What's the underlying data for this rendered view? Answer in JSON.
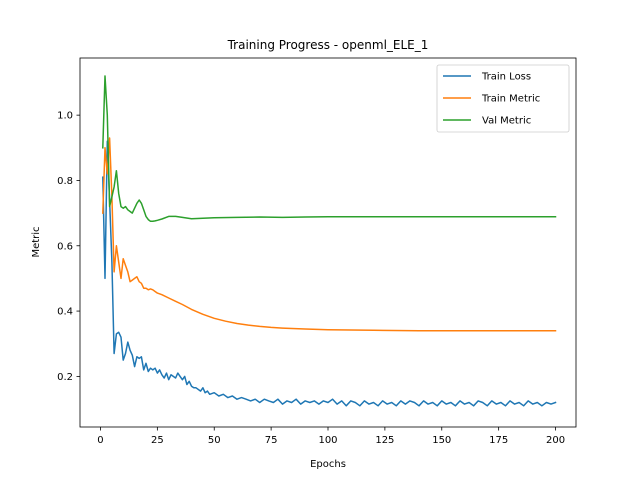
{
  "chart_data": {
    "type": "line",
    "title": "Training Progress - openml_ELE_1",
    "xlabel": "Epochs",
    "ylabel": "Metric",
    "xlim": [
      -9,
      209
    ],
    "ylim": [
      0.045,
      1.175
    ],
    "xticks": [
      0,
      25,
      50,
      75,
      100,
      125,
      150,
      175,
      200
    ],
    "yticks": [
      0.2,
      0.4,
      0.6,
      0.8,
      1.0
    ],
    "ytick_labels": [
      "0.2",
      "0.4",
      "0.6",
      "0.8",
      "1.0"
    ],
    "grid": false,
    "legend_position": "top-right",
    "series": [
      {
        "name": "Train Loss",
        "color": "#1f77b4",
        "points": [
          [
            1,
            0.81
          ],
          [
            2,
            0.5
          ],
          [
            3,
            0.92
          ],
          [
            4,
            0.74
          ],
          [
            5,
            0.55
          ],
          [
            6,
            0.27
          ],
          [
            7,
            0.33
          ],
          [
            8,
            0.335
          ],
          [
            9,
            0.32
          ],
          [
            10,
            0.25
          ],
          [
            11,
            0.27
          ],
          [
            12,
            0.305
          ],
          [
            13,
            0.28
          ],
          [
            14,
            0.265
          ],
          [
            15,
            0.23
          ],
          [
            16,
            0.26
          ],
          [
            17,
            0.255
          ],
          [
            18,
            0.26
          ],
          [
            19,
            0.22
          ],
          [
            20,
            0.24
          ],
          [
            21,
            0.215
          ],
          [
            22,
            0.225
          ],
          [
            23,
            0.22
          ],
          [
            24,
            0.225
          ],
          [
            25,
            0.21
          ],
          [
            26,
            0.22
          ],
          [
            27,
            0.205
          ],
          [
            28,
            0.195
          ],
          [
            29,
            0.21
          ],
          [
            30,
            0.19
          ],
          [
            31,
            0.205
          ],
          [
            32,
            0.2
          ],
          [
            33,
            0.195
          ],
          [
            34,
            0.21
          ],
          [
            35,
            0.2
          ],
          [
            36,
            0.19
          ],
          [
            37,
            0.2
          ],
          [
            38,
            0.175
          ],
          [
            39,
            0.185
          ],
          [
            40,
            0.17
          ],
          [
            41,
            0.165
          ],
          [
            42,
            0.165
          ],
          [
            44,
            0.155
          ],
          [
            45,
            0.165
          ],
          [
            46,
            0.15
          ],
          [
            47,
            0.155
          ],
          [
            48,
            0.145
          ],
          [
            50,
            0.15
          ],
          [
            52,
            0.14
          ],
          [
            54,
            0.145
          ],
          [
            56,
            0.135
          ],
          [
            58,
            0.14
          ],
          [
            60,
            0.13
          ],
          [
            62,
            0.135
          ],
          [
            64,
            0.13
          ],
          [
            66,
            0.125
          ],
          [
            68,
            0.13
          ],
          [
            70,
            0.12
          ],
          [
            72,
            0.13
          ],
          [
            74,
            0.125
          ],
          [
            76,
            0.12
          ],
          [
            78,
            0.13
          ],
          [
            80,
            0.115
          ],
          [
            82,
            0.125
          ],
          [
            84,
            0.12
          ],
          [
            86,
            0.13
          ],
          [
            88,
            0.115
          ],
          [
            90,
            0.125
          ],
          [
            92,
            0.12
          ],
          [
            94,
            0.125
          ],
          [
            96,
            0.115
          ],
          [
            98,
            0.125
          ],
          [
            100,
            0.12
          ],
          [
            102,
            0.13
          ],
          [
            104,
            0.115
          ],
          [
            106,
            0.125
          ],
          [
            108,
            0.11
          ],
          [
            110,
            0.125
          ],
          [
            112,
            0.12
          ],
          [
            114,
            0.11
          ],
          [
            116,
            0.125
          ],
          [
            118,
            0.115
          ],
          [
            120,
            0.12
          ],
          [
            122,
            0.11
          ],
          [
            124,
            0.125
          ],
          [
            126,
            0.115
          ],
          [
            128,
            0.12
          ],
          [
            130,
            0.11
          ],
          [
            132,
            0.125
          ],
          [
            134,
            0.115
          ],
          [
            136,
            0.125
          ],
          [
            138,
            0.12
          ],
          [
            140,
            0.11
          ],
          [
            142,
            0.125
          ],
          [
            144,
            0.115
          ],
          [
            146,
            0.12
          ],
          [
            148,
            0.11
          ],
          [
            150,
            0.125
          ],
          [
            152,
            0.115
          ],
          [
            154,
            0.12
          ],
          [
            156,
            0.11
          ],
          [
            158,
            0.125
          ],
          [
            160,
            0.115
          ],
          [
            162,
            0.12
          ],
          [
            164,
            0.11
          ],
          [
            166,
            0.125
          ],
          [
            168,
            0.12
          ],
          [
            170,
            0.11
          ],
          [
            172,
            0.125
          ],
          [
            174,
            0.115
          ],
          [
            176,
            0.12
          ],
          [
            178,
            0.11
          ],
          [
            180,
            0.125
          ],
          [
            182,
            0.115
          ],
          [
            184,
            0.12
          ],
          [
            186,
            0.11
          ],
          [
            188,
            0.125
          ],
          [
            190,
            0.115
          ],
          [
            192,
            0.12
          ],
          [
            194,
            0.11
          ],
          [
            196,
            0.12
          ],
          [
            198,
            0.115
          ],
          [
            200,
            0.12
          ]
        ]
      },
      {
        "name": "Train Metric",
        "color": "#ff7f0e",
        "points": [
          [
            1,
            0.7
          ],
          [
            2,
            0.9
          ],
          [
            3,
            0.82
          ],
          [
            4,
            0.93
          ],
          [
            5,
            0.75
          ],
          [
            6,
            0.52
          ],
          [
            7,
            0.6
          ],
          [
            8,
            0.55
          ],
          [
            9,
            0.5
          ],
          [
            10,
            0.56
          ],
          [
            11,
            0.54
          ],
          [
            12,
            0.52
          ],
          [
            13,
            0.49
          ],
          [
            14,
            0.495
          ],
          [
            15,
            0.5
          ],
          [
            16,
            0.505
          ],
          [
            17,
            0.49
          ],
          [
            18,
            0.485
          ],
          [
            19,
            0.47
          ],
          [
            20,
            0.47
          ],
          [
            21,
            0.465
          ],
          [
            22,
            0.468
          ],
          [
            23,
            0.465
          ],
          [
            24,
            0.46
          ],
          [
            25,
            0.455
          ],
          [
            27,
            0.45
          ],
          [
            30,
            0.44
          ],
          [
            33,
            0.43
          ],
          [
            36,
            0.42
          ],
          [
            40,
            0.405
          ],
          [
            45,
            0.39
          ],
          [
            50,
            0.378
          ],
          [
            55,
            0.369
          ],
          [
            60,
            0.362
          ],
          [
            65,
            0.357
          ],
          [
            70,
            0.353
          ],
          [
            75,
            0.35
          ],
          [
            80,
            0.348
          ],
          [
            90,
            0.345
          ],
          [
            100,
            0.343
          ],
          [
            110,
            0.342
          ],
          [
            120,
            0.341
          ],
          [
            140,
            0.34
          ],
          [
            160,
            0.34
          ],
          [
            180,
            0.34
          ],
          [
            200,
            0.34
          ]
        ]
      },
      {
        "name": "Val Metric",
        "color": "#2ca02c",
        "points": [
          [
            1,
            0.9
          ],
          [
            2,
            1.12
          ],
          [
            3,
            1.0
          ],
          [
            4,
            0.72
          ],
          [
            5,
            0.75
          ],
          [
            6,
            0.78
          ],
          [
            7,
            0.83
          ],
          [
            8,
            0.76
          ],
          [
            9,
            0.72
          ],
          [
            10,
            0.715
          ],
          [
            11,
            0.72
          ],
          [
            12,
            0.71
          ],
          [
            13,
            0.705
          ],
          [
            14,
            0.7
          ],
          [
            15,
            0.715
          ],
          [
            16,
            0.73
          ],
          [
            17,
            0.74
          ],
          [
            18,
            0.73
          ],
          [
            19,
            0.71
          ],
          [
            20,
            0.69
          ],
          [
            21,
            0.68
          ],
          [
            22,
            0.675
          ],
          [
            23,
            0.675
          ],
          [
            24,
            0.676
          ],
          [
            25,
            0.678
          ],
          [
            27,
            0.682
          ],
          [
            30,
            0.69
          ],
          [
            33,
            0.69
          ],
          [
            36,
            0.687
          ],
          [
            40,
            0.683
          ],
          [
            45,
            0.684
          ],
          [
            50,
            0.686
          ],
          [
            60,
            0.687
          ],
          [
            70,
            0.688
          ],
          [
            80,
            0.687
          ],
          [
            90,
            0.688
          ],
          [
            100,
            0.689
          ],
          [
            110,
            0.689
          ],
          [
            120,
            0.689
          ],
          [
            140,
            0.689
          ],
          [
            160,
            0.689
          ],
          [
            180,
            0.689
          ],
          [
            200,
            0.689
          ]
        ]
      }
    ]
  }
}
